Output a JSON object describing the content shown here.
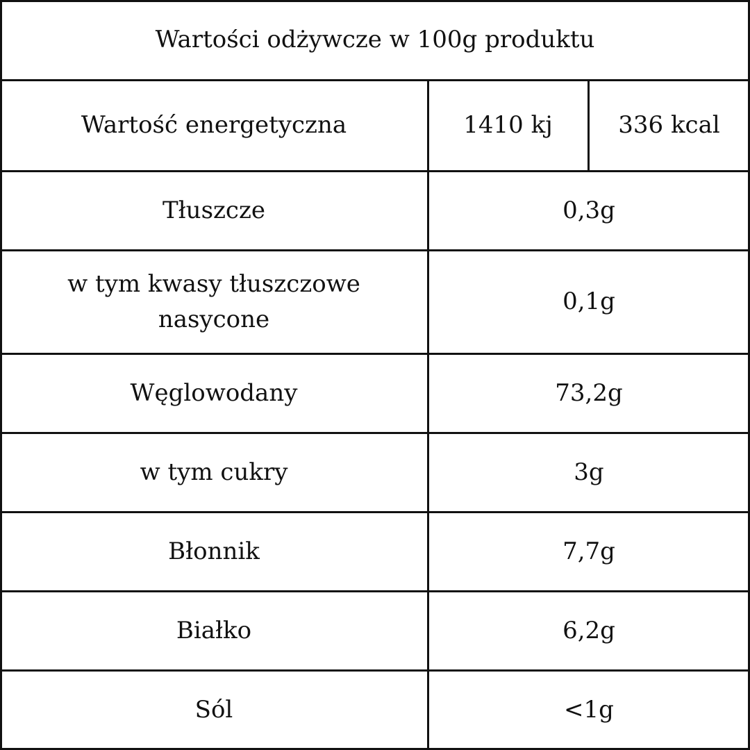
{
  "table": {
    "title": "Wartości odżywcze w 100g produktu",
    "rows": [
      [
        "Wartość energetyczna",
        "1410 kj",
        "336 kcal"
      ],
      [
        "Tłuszcze",
        "0,3g"
      ],
      [
        "w tym kwasy tłuszczowe nasycone",
        "0,1g"
      ],
      [
        "Węglowodany",
        "73,2g"
      ],
      [
        "w tym cukry",
        "3g"
      ],
      [
        "Błonnik",
        "7,7g"
      ],
      [
        "Białko",
        "6,2g"
      ],
      [
        "Sól",
        "<1g"
      ]
    ]
  }
}
